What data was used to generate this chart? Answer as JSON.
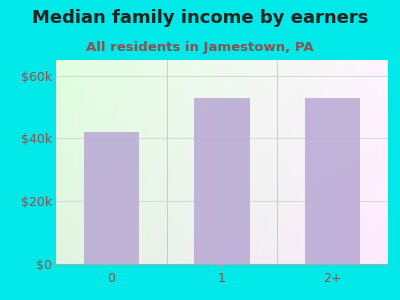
{
  "title": "Median family income by earners",
  "subtitle": "All residents in Jamestown, PA",
  "categories": [
    "0",
    "1",
    "2+"
  ],
  "values": [
    42000,
    53000,
    53000
  ],
  "bar_color": "#b8a8d4",
  "background_color": "#00e8e8",
  "title_color": "#222222",
  "subtitle_color": "#8b5050",
  "tick_label_color": "#8b5050",
  "ylim": [
    0,
    65000
  ],
  "yticks": [
    0,
    20000,
    40000,
    60000
  ],
  "ytick_labels": [
    "$0",
    "$20k",
    "$40k",
    "$60k"
  ],
  "title_fontsize": 13,
  "subtitle_fontsize": 9.5,
  "tick_fontsize": 9,
  "grid_color": "#ccddcc",
  "bottom_spine_color": "#aaaaaa"
}
